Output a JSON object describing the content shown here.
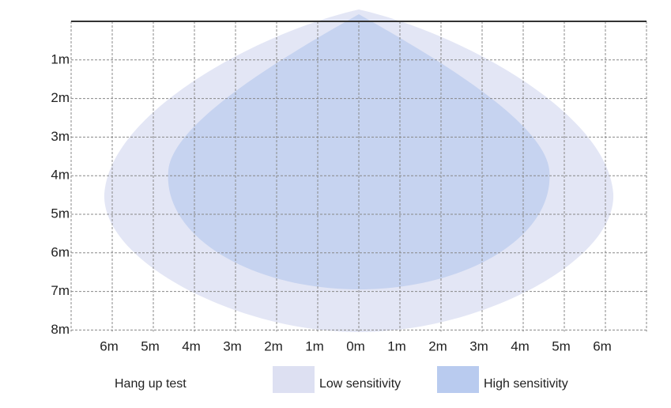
{
  "y_labels": [
    "1m",
    "2m",
    "3m",
    "4m",
    "5m",
    "6m",
    "7m",
    "8m"
  ],
  "x_labels": [
    "6m",
    "5m",
    "4m",
    "3m",
    "2m",
    "1m",
    "0m",
    "1m",
    "2m",
    "3m",
    "4m",
    "5m",
    "6m"
  ],
  "legend": {
    "title": "Hang up test",
    "items": [
      "Low sensitivity",
      "High sensitivity"
    ]
  }
}
